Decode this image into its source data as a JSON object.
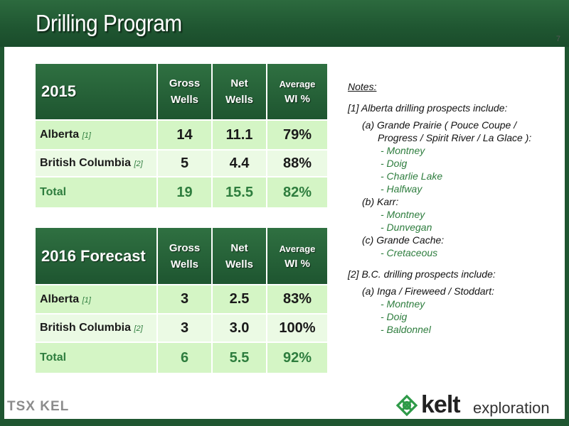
{
  "slide": {
    "title": "Drilling Program",
    "page_number": "7"
  },
  "colors": {
    "header_green": "#1f5631",
    "accent_green": "#2e7d3e",
    "row_light": "#d4f5c5",
    "row_lighter": "#ebfae4"
  },
  "table_2015": {
    "year": "2015",
    "columns": {
      "gross_line1": "Gross",
      "gross_line2": "Wells",
      "net_line1": "Net",
      "net_line2": "Wells",
      "avg_line1": "Average",
      "avg_line2": "WI %"
    },
    "rows": [
      {
        "label": "Alberta",
        "ref": "[1]",
        "gross": "14",
        "net": "11.1",
        "wi": "79%"
      },
      {
        "label": "British Columbia",
        "ref": "[2]",
        "gross": "5",
        "net": "4.4",
        "wi": "88%"
      },
      {
        "label": "Total",
        "ref": "",
        "gross": "19",
        "net": "15.5",
        "wi": "82%"
      }
    ]
  },
  "table_2016": {
    "year": "2016 Forecast",
    "columns": {
      "gross_line1": "Gross",
      "gross_line2": "Wells",
      "net_line1": "Net",
      "net_line2": "Wells",
      "avg_line1": "Average",
      "avg_line2": "WI %"
    },
    "rows": [
      {
        "label": "Alberta",
        "ref": "[1]",
        "gross": "3",
        "net": "2.5",
        "wi": "83%"
      },
      {
        "label": "British Columbia",
        "ref": "[2]",
        "gross": "3",
        "net": "3.0",
        "wi": "100%"
      },
      {
        "label": "Total",
        "ref": "",
        "gross": "6",
        "net": "5.5",
        "wi": "92%"
      }
    ]
  },
  "notes": {
    "heading": "Notes:",
    "note1_head": "[1] Alberta drilling prospects include:",
    "note1_a_line1": "(a) Grande Prairie ( Pouce Coupe /",
    "note1_a_line2": "Progress / Spirit River / La Glace ):",
    "note1_a_items": [
      "- Montney",
      "- Doig",
      "- Charlie Lake",
      "- Halfway"
    ],
    "note1_b": "(b) Karr:",
    "note1_b_items": [
      "- Montney",
      "- Dunvegan"
    ],
    "note1_c": "(c) Grande Cache:",
    "note1_c_items": [
      "- Cretaceous"
    ],
    "note2_head": "[2] B.C. drilling prospects include:",
    "note2_a": "(a) Inga / Fireweed / Stoddart:",
    "note2_a_items": [
      "- Montney",
      "- Doig",
      "- Baldonnel"
    ]
  },
  "footer": {
    "tsx_logo_text": "TSX KEL",
    "kelt_word": "kelt",
    "kelt_sub": "exploration"
  }
}
